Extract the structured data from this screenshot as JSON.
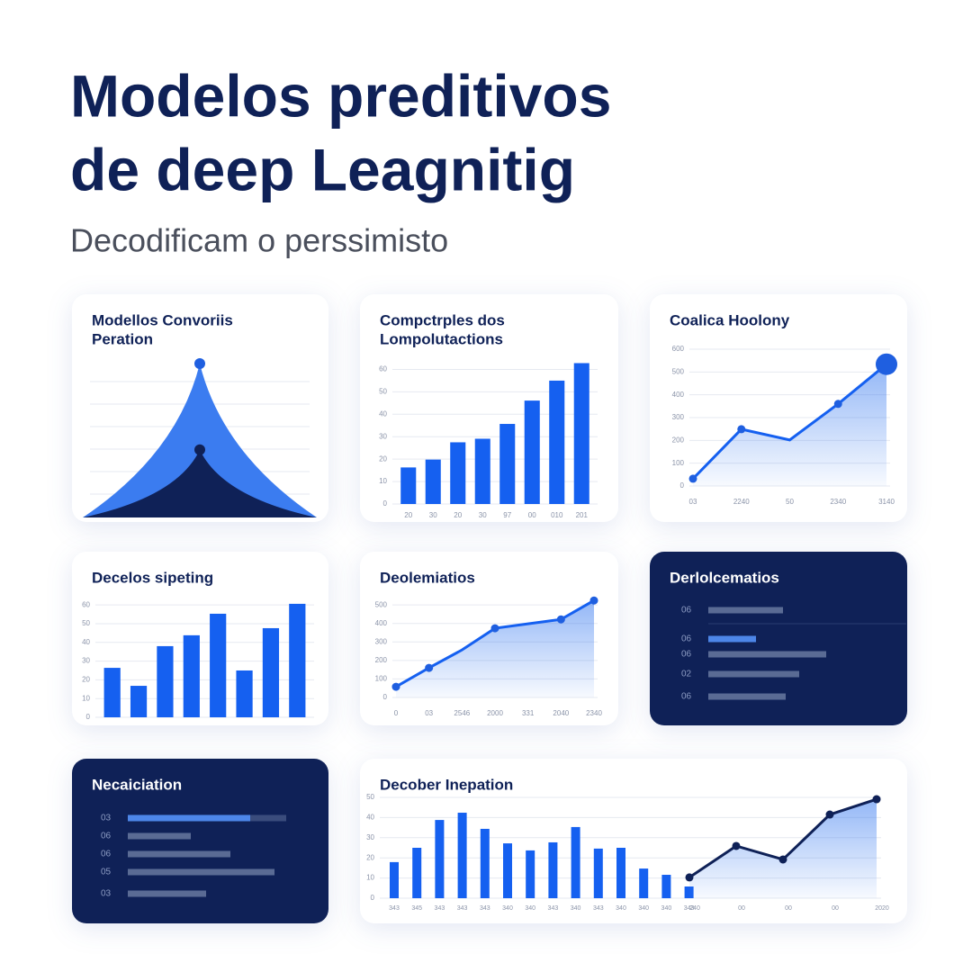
{
  "header": {
    "title": [
      "Modelos preditivos",
      "de deep Leagnitig"
    ],
    "subtitle": "Decodificam o perssimisto"
  },
  "chart_data": [
    {
      "type": "area",
      "title": [
        "Modellos Convoriis",
        "Peration"
      ],
      "x": [
        0,
        1,
        2
      ],
      "xlim": [
        0,
        2
      ],
      "ylim": [
        0,
        100
      ],
      "series": [
        {
          "color": "#3b7cf0",
          "values": [
            0,
            100,
            0
          ]
        },
        {
          "color": "#0f2157",
          "values": [
            0,
            44,
            0
          ]
        }
      ]
    },
    {
      "type": "bar",
      "title": [
        "Compctrples dos",
        "Lompolutactions"
      ],
      "categories": [
        "20",
        "30",
        "20",
        "30",
        "97",
        "00",
        "010",
        "201"
      ],
      "values": [
        16.3,
        19.8,
        27.5,
        29.1,
        35.7,
        46.1,
        55,
        62.8
      ],
      "color": "#1560f0",
      "ylim": [
        0,
        65
      ],
      "yticks": [
        0,
        10,
        20,
        30,
        40,
        50,
        60
      ],
      "grid": true
    },
    {
      "type": "line",
      "title": [
        "Coalica Hoolony"
      ],
      "categories": [
        "03",
        "2240",
        "50",
        "2340",
        "3140"
      ],
      "values": [
        32,
        249,
        202,
        360,
        534
      ],
      "color": "#1560f0",
      "ylim": [
        0,
        600
      ],
      "yticks": [
        0,
        100,
        200,
        300,
        400,
        500,
        600
      ],
      "grid": true
    },
    {
      "type": "bar",
      "title": [
        "Decelos sipeting"
      ],
      "categories": [
        null,
        null,
        null,
        null,
        null,
        null,
        null,
        null
      ],
      "values": [
        26.4,
        16.8,
        38,
        43.8,
        55.3,
        25,
        47.6,
        60.6
      ],
      "color": "#1560f0",
      "ylim": [
        0,
        62
      ],
      "yticks": [
        0,
        10,
        20,
        30,
        40,
        50,
        60
      ],
      "grid": true
    },
    {
      "type": "line",
      "title": [
        "Deolemiatios"
      ],
      "categories": [
        "0",
        "03",
        "2546",
        "2000",
        "331",
        "2040",
        "2340"
      ],
      "values": [
        58,
        160,
        257,
        374,
        398,
        422,
        524
      ],
      "color": "#1560f0",
      "ylim": [
        0,
        525
      ],
      "yticks": [
        0,
        100,
        200,
        300,
        400,
        500
      ],
      "grid": true
    },
    {
      "type": "hbar",
      "title": [
        "Derlolcematios"
      ],
      "background": "#0f2157",
      "categories": [
        "06",
        "06",
        "06",
        "02",
        "06"
      ],
      "values": [
        83,
        53,
        131,
        101,
        86
      ],
      "colors": [
        "#5a6b94",
        "#4d86e8",
        "#5a6b94",
        "#5a6b94",
        "#5a6b94"
      ],
      "xlim": [
        0,
        150
      ]
    },
    {
      "type": "hbar",
      "title": [
        "Necaiciation"
      ],
      "background": "#0f2157",
      "categories": [
        "03",
        "06",
        "06",
        "05",
        "03"
      ],
      "values": [
        136,
        70,
        114,
        163,
        87
      ],
      "colors": [
        "#4d86e8",
        "#5a6b94",
        "#5a6b94",
        "#5a6b94",
        "#5a6b94"
      ],
      "xlim": [
        0,
        176
      ],
      "track": true
    },
    {
      "type": "combo",
      "title": [
        "Decober Inepation"
      ],
      "categories": [
        "343",
        "345",
        "343",
        "343",
        "343",
        "340",
        "340",
        "343",
        "340",
        "343",
        "340",
        "340",
        "340",
        "343"
      ],
      "values": [
        17.9,
        25,
        38.8,
        42.4,
        34.4,
        27.2,
        23.7,
        27.7,
        35.3,
        24.6,
        25,
        14.7,
        11.6,
        5.8
      ],
      "color": "#1560f0",
      "line": {
        "categories": [
          "240",
          "00",
          "00",
          "00",
          "2020"
        ],
        "values": [
          10.3,
          25.9,
          19.2,
          41.5,
          49.1
        ],
        "color": "#0f2157"
      },
      "ylim": [
        0,
        50
      ],
      "yticks": [
        0,
        10,
        20,
        30,
        40,
        50
      ],
      "grid": true
    }
  ]
}
